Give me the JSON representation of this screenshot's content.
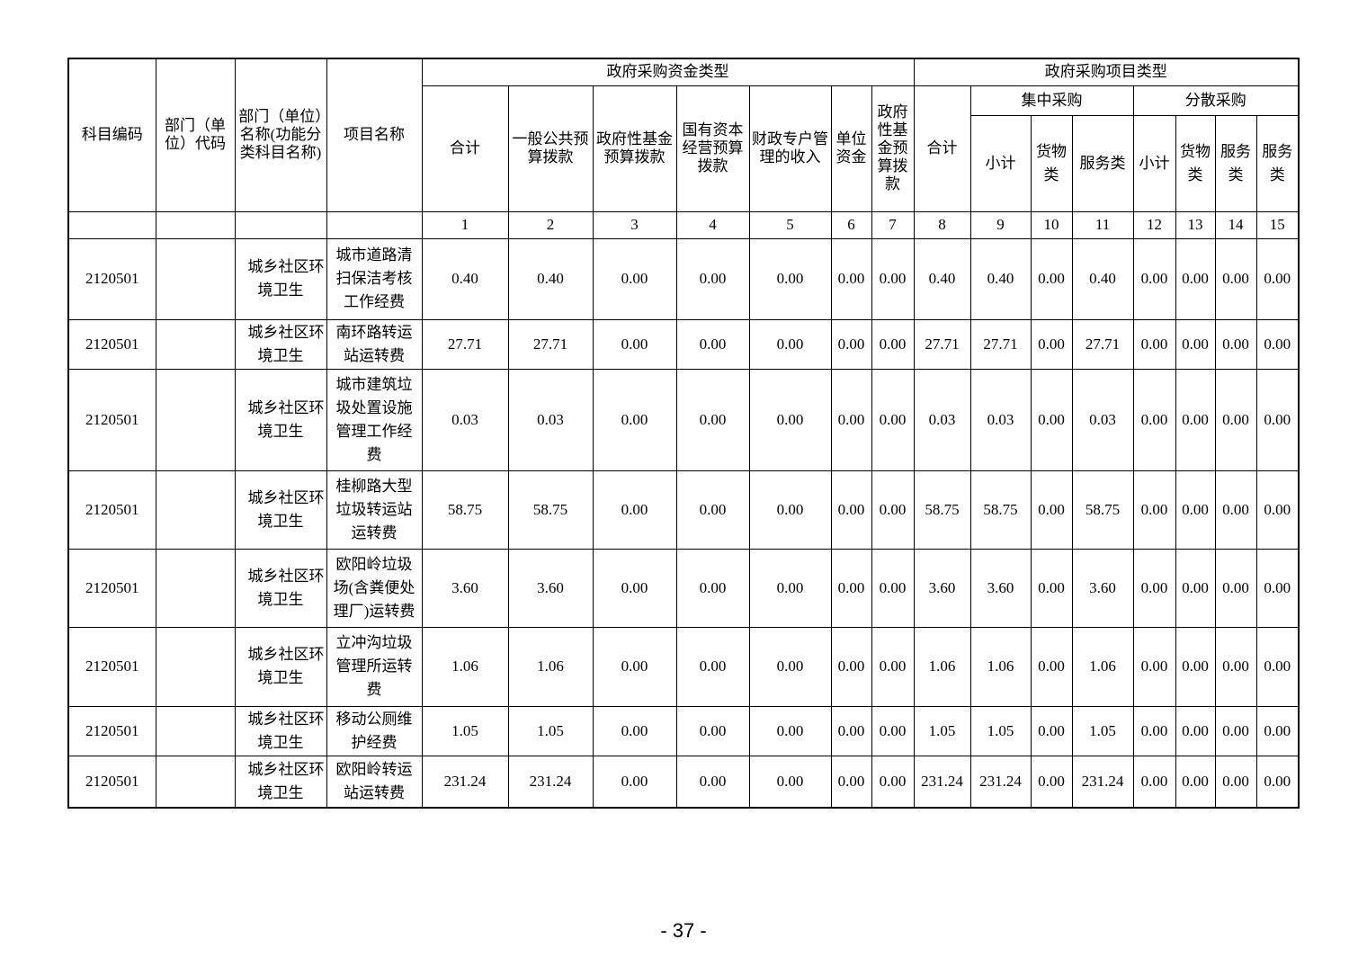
{
  "colors": {
    "text": "#000000",
    "border": "#000000",
    "background": "#ffffff"
  },
  "page": {
    "number_label": "- 37 -"
  },
  "table": {
    "header": {
      "col_subject_code": "科目编码",
      "col_dept_code": "部门（单位）代码",
      "col_dept_name": "部门（单位）名称(功能分类科目名称)",
      "col_project_name": "项目名称",
      "fund_type_group": "政府采购资金类型",
      "project_type_group": "政府采购项目类型",
      "fund_cols": [
        "合计",
        "一般公共预算拨款",
        "政府性基金预算拨款",
        "国有资本经营预算拨款",
        "财政专户管理的收入",
        "单位资金",
        "政府性基金预算拨款"
      ],
      "project_total": "合计",
      "centralized_group": "集中采购",
      "decentralized_group": "分散采购",
      "centralized_cols": [
        "小计",
        "货物类",
        "服务类"
      ],
      "decentralized_cols": [
        "小计",
        "货物类",
        "服务类",
        "服务类"
      ],
      "col_numbers": [
        "1",
        "2",
        "3",
        "4",
        "5",
        "6",
        "7",
        "8",
        "9",
        "10",
        "11",
        "12",
        "13",
        "14",
        "15"
      ]
    },
    "rows": [
      {
        "subject_code": "2120501",
        "dept_code": "",
        "dept_name": "城乡社区环境卫生",
        "project_name": "城市道路清扫保洁考核工作经费",
        "values": [
          "0.40",
          "0.40",
          "0.00",
          "0.00",
          "0.00",
          "0.00",
          "0.00",
          "0.40",
          "0.40",
          "0.00",
          "0.40",
          "0.00",
          "0.00",
          "0.00",
          "0.00"
        ]
      },
      {
        "subject_code": "2120501",
        "dept_code": "",
        "dept_name": "城乡社区环境卫生",
        "project_name": "南环路转运站运转费",
        "values": [
          "27.71",
          "27.71",
          "0.00",
          "0.00",
          "0.00",
          "0.00",
          "0.00",
          "27.71",
          "27.71",
          "0.00",
          "27.71",
          "0.00",
          "0.00",
          "0.00",
          "0.00"
        ]
      },
      {
        "subject_code": "2120501",
        "dept_code": "",
        "dept_name": "城乡社区环境卫生",
        "project_name": "城市建筑垃圾处置设施管理工作经费",
        "values": [
          "0.03",
          "0.03",
          "0.00",
          "0.00",
          "0.00",
          "0.00",
          "0.00",
          "0.03",
          "0.03",
          "0.00",
          "0.03",
          "0.00",
          "0.00",
          "0.00",
          "0.00"
        ]
      },
      {
        "subject_code": "2120501",
        "dept_code": "",
        "dept_name": "城乡社区环境卫生",
        "project_name": "桂柳路大型垃圾转运站运转费",
        "values": [
          "58.75",
          "58.75",
          "0.00",
          "0.00",
          "0.00",
          "0.00",
          "0.00",
          "58.75",
          "58.75",
          "0.00",
          "58.75",
          "0.00",
          "0.00",
          "0.00",
          "0.00"
        ]
      },
      {
        "subject_code": "2120501",
        "dept_code": "",
        "dept_name": "城乡社区环境卫生",
        "project_name": "欧阳岭垃圾场(含粪便处理厂)运转费",
        "values": [
          "3.60",
          "3.60",
          "0.00",
          "0.00",
          "0.00",
          "0.00",
          "0.00",
          "3.60",
          "3.60",
          "0.00",
          "3.60",
          "0.00",
          "0.00",
          "0.00",
          "0.00"
        ]
      },
      {
        "subject_code": "2120501",
        "dept_code": "",
        "dept_name": "城乡社区环境卫生",
        "project_name": "立冲沟垃圾管理所运转费",
        "values": [
          "1.06",
          "1.06",
          "0.00",
          "0.00",
          "0.00",
          "0.00",
          "0.00",
          "1.06",
          "1.06",
          "0.00",
          "1.06",
          "0.00",
          "0.00",
          "0.00",
          "0.00"
        ]
      },
      {
        "subject_code": "2120501",
        "dept_code": "",
        "dept_name": "城乡社区环境卫生",
        "project_name": "移动公厕维护经费",
        "values": [
          "1.05",
          "1.05",
          "0.00",
          "0.00",
          "0.00",
          "0.00",
          "0.00",
          "1.05",
          "1.05",
          "0.00",
          "1.05",
          "0.00",
          "0.00",
          "0.00",
          "0.00"
        ]
      },
      {
        "subject_code": "2120501",
        "dept_code": "",
        "dept_name": "城乡社区环境卫生",
        "project_name": "欧阳岭转运站运转费",
        "values": [
          "231.24",
          "231.24",
          "0.00",
          "0.00",
          "0.00",
          "0.00",
          "0.00",
          "231.24",
          "231.24",
          "0.00",
          "231.24",
          "0.00",
          "0.00",
          "0.00",
          "0.00"
        ]
      }
    ]
  }
}
